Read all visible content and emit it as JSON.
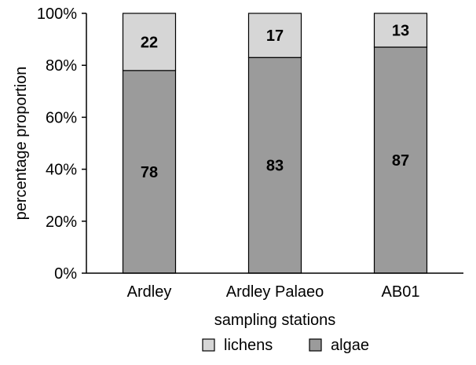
{
  "chart_data": {
    "type": "bar",
    "stacked": true,
    "percent": true,
    "title": "",
    "xlabel": "sampling stations",
    "ylabel": "percentage proportion",
    "ylim": [
      0,
      100
    ],
    "categories": [
      "Ardley",
      "Ardley Palaeo",
      "AB01"
    ],
    "y_ticks": [
      "0%",
      "20%",
      "40%",
      "60%",
      "80%",
      "100%"
    ],
    "series": [
      {
        "name": "algae",
        "values": [
          78,
          83,
          87
        ],
        "color": "#9b9b9b"
      },
      {
        "name": "lichens",
        "values": [
          22,
          17,
          13
        ],
        "color": "#d6d6d6"
      }
    ],
    "data_labels": true,
    "grid": false,
    "legend_position": "bottom",
    "legend_order": [
      "lichens",
      "algae"
    ]
  }
}
